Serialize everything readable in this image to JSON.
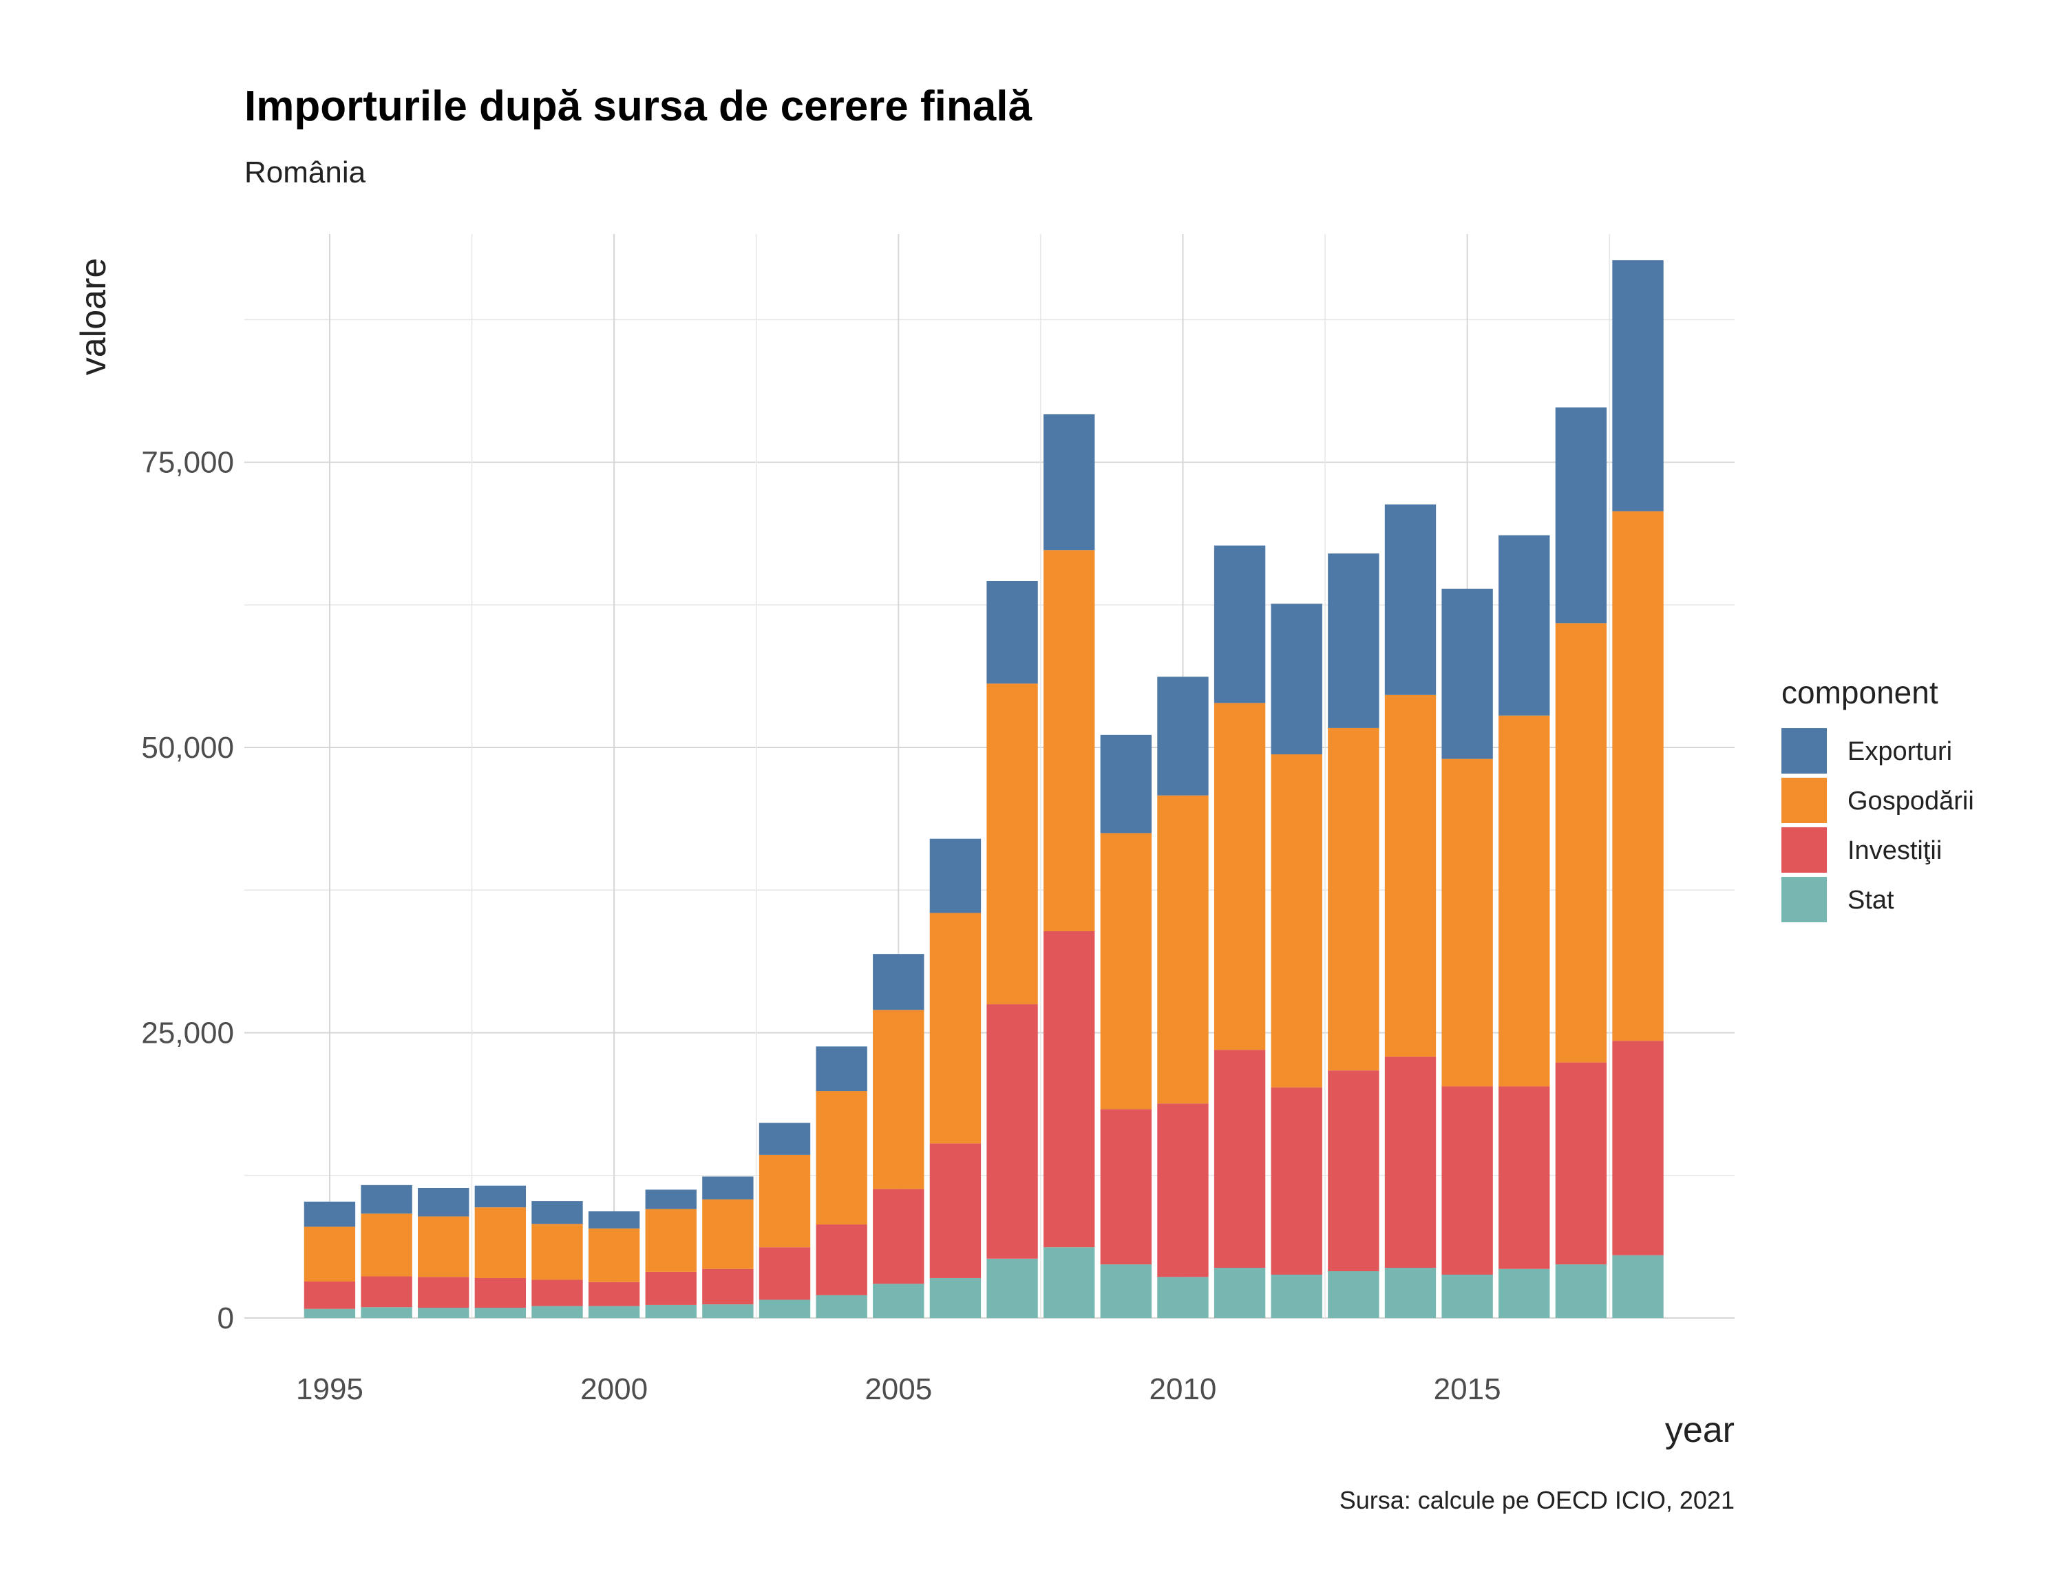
{
  "chart_data": {
    "type": "bar",
    "stacked": true,
    "title": "Importurile după sursa de cerere finală",
    "subtitle": "România",
    "xlabel": "year",
    "ylabel": "valoare",
    "caption": "Sursa: calcule pe OECD ICIO, 2021",
    "legend_title": "component",
    "legend_position": "right",
    "grid": true,
    "ylim": [
      0,
      95000
    ],
    "xlim": [
      1993.5,
      2019.7
    ],
    "x_ticks": [
      1995,
      2000,
      2005,
      2010,
      2015
    ],
    "x_tick_labels": [
      "1995",
      "2000",
      "2005",
      "2010",
      "2015"
    ],
    "y_ticks": [
      0,
      25000,
      50000,
      75000
    ],
    "y_tick_labels": [
      "0",
      "25,000",
      "50,000",
      "75,000"
    ],
    "x": [
      1995,
      1996,
      1997,
      1998,
      1999,
      2000,
      2001,
      2002,
      2003,
      2004,
      2005,
      2006,
      2007,
      2008,
      2009,
      2010,
      2011,
      2012,
      2013,
      2014,
      2015,
      2016,
      2017,
      2018
    ],
    "series": [
      {
        "name": "Stat",
        "color": "#76b7b2",
        "values": [
          800,
          950,
          900,
          900,
          1050,
          1050,
          1150,
          1200,
          1600,
          2000,
          3000,
          3500,
          5200,
          6200,
          4700,
          3600,
          4400,
          3800,
          4100,
          4400,
          3800,
          4300,
          4700,
          5500
        ]
      },
      {
        "name": "Investiţii",
        "color": "#e15759",
        "values": [
          2400,
          2700,
          2700,
          2600,
          2300,
          2100,
          2900,
          3100,
          4600,
          6200,
          8300,
          11800,
          22300,
          27700,
          13600,
          15200,
          19100,
          16400,
          17600,
          18500,
          16500,
          16000,
          17700,
          18800
        ]
      },
      {
        "name": "Gospodării",
        "color": "#f28e2b",
        "values": [
          4800,
          5500,
          5300,
          6200,
          4900,
          4700,
          5500,
          6100,
          8100,
          11700,
          15700,
          20200,
          28100,
          33400,
          24200,
          27000,
          30400,
          29200,
          30000,
          31700,
          28700,
          32500,
          38500,
          46400
        ]
      },
      {
        "name": "Exporturi",
        "color": "#4e79a7",
        "values": [
          2200,
          2500,
          2500,
          1900,
          2000,
          1500,
          1700,
          2000,
          2800,
          3900,
          4900,
          6500,
          9000,
          11900,
          8600,
          10400,
          13800,
          13200,
          15300,
          16700,
          14900,
          15800,
          18900,
          22000
        ]
      }
    ],
    "legend_order": [
      "Exporturi",
      "Gospodării",
      "Investiţii",
      "Stat"
    ]
  }
}
